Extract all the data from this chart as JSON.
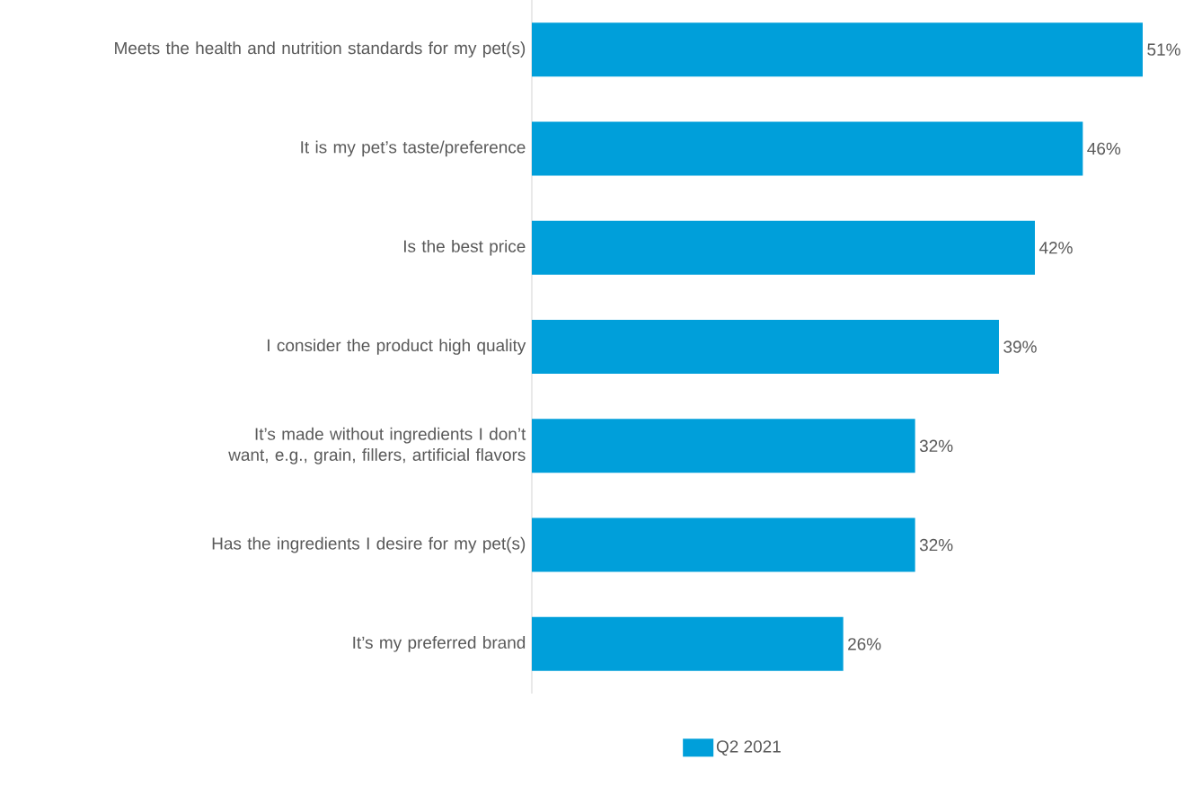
{
  "chart_data": {
    "type": "bar",
    "orientation": "horizontal",
    "legend": "bottom",
    "categories": [
      "Meets the health and nutrition standards for my pet(s)",
      "It is my pet’s taste/preference",
      "Is the best price",
      "I consider the product high quality",
      "It’s made without ingredients I don’t want, e.g., grain, fillers, artificial flavors",
      "Has the ingredients I desire for my pet(s)",
      "It’s my preferred brand"
    ],
    "series": [
      {
        "name": "Q2 2021",
        "color": "#009fda",
        "values": [
          51,
          46,
          42,
          39,
          32,
          32,
          26
        ],
        "value_labels": [
          "51%",
          "46%",
          "42%",
          "39%",
          "32%",
          "32%",
          "26%"
        ]
      }
    ]
  }
}
